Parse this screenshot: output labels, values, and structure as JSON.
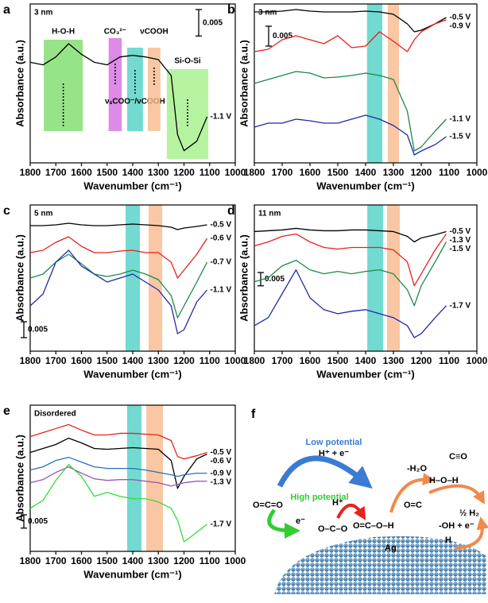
{
  "chart_data": [
    {
      "type": "line",
      "panel_label": "a",
      "title": "3 nm",
      "x_label": "Wavenumber (cm⁻¹)",
      "y_label": "Absorbance (a.u.)",
      "x": [
        1800,
        1750,
        1700,
        1650,
        1600,
        1550,
        1500,
        1450,
        1400,
        1350,
        1300,
        1250,
        1225,
        1200,
        1150,
        1110
      ],
      "xlim": [
        1800,
        1000
      ],
      "xticks": [
        1800,
        1700,
        1600,
        1500,
        1400,
        1300,
        1200,
        1100,
        1000
      ],
      "ylim": [
        0,
        0.03
      ],
      "scale_bar": 0.005,
      "bands": [
        {
          "x": [
            1747,
            1595
          ],
          "color": "#7ddc6a",
          "label": "H-O-H"
        },
        {
          "x": [
            1494,
            1443
          ],
          "color": "#d46ee0",
          "label": "CO₃²⁻"
        },
        {
          "x": [
            1422,
            1360
          ],
          "color": "#4fd1c5",
          "label": "νₛCOO⁻/νCOOH"
        },
        {
          "x": [
            1341,
            1292
          ],
          "color": "#f7b98c",
          "label": "νCOOH"
        },
        {
          "x": [
            1267,
            1105
          ],
          "color": "#a4f08a",
          "label": "Si-O-Si"
        }
      ],
      "series": [
        {
          "name": "-1.1 V",
          "color": "#000000",
          "values": [
            0.019,
            0.0185,
            0.02,
            0.0225,
            0.0205,
            0.019,
            0.0185,
            0.02,
            0.0203,
            0.02,
            0.0195,
            0.0165,
            0.0053,
            0.0023,
            0.0041,
            0.0087
          ]
        }
      ]
    },
    {
      "type": "line",
      "panel_label": "b",
      "title": "3 nm",
      "x_label": "Wavenumber (cm⁻¹)",
      "y_label": "Absorbance (a.u.)",
      "x": [
        1800,
        1750,
        1700,
        1650,
        1600,
        1550,
        1500,
        1450,
        1400,
        1350,
        1300,
        1250,
        1225,
        1200,
        1150,
        1110
      ],
      "xlim": [
        1800,
        1000
      ],
      "xticks": [
        1800,
        1700,
        1600,
        1500,
        1400,
        1300,
        1200,
        1100,
        1000
      ],
      "ylim": [
        0,
        0.04
      ],
      "scale_bar": 0.005,
      "bands": [
        {
          "x": [
            1395,
            1340
          ],
          "color": "#4fd1c5"
        },
        {
          "x": [
            1320,
            1280
          ],
          "color": "#f7b98c"
        }
      ],
      "series": [
        {
          "name": "-0.5 V",
          "color": "#000000",
          "values": [
            0.038,
            0.038,
            0.0382,
            0.0386,
            0.0382,
            0.038,
            0.038,
            0.038,
            0.0382,
            0.038,
            0.0374,
            0.035,
            0.033,
            0.0334,
            0.035,
            0.0366
          ]
        },
        {
          "name": "-0.9 V",
          "color": "#e8211c",
          "values": [
            0.028,
            0.0286,
            0.031,
            0.032,
            0.031,
            0.03,
            0.032,
            0.029,
            0.0294,
            0.033,
            0.0306,
            0.028,
            0.031,
            0.033,
            0.035,
            0.036
          ]
        },
        {
          "name": "-1.1 V",
          "color": "#1a8a4a",
          "values": [
            0.02,
            0.021,
            0.022,
            0.023,
            0.0226,
            0.0214,
            0.0216,
            0.022,
            0.0226,
            0.022,
            0.021,
            0.013,
            0.003,
            0.004,
            0.008,
            0.011
          ]
        },
        {
          "name": "-1.5 V",
          "color": "#1f2aa8",
          "values": [
            0.009,
            0.01,
            0.01,
            0.011,
            0.0106,
            0.01,
            0.01,
            0.011,
            0.012,
            0.011,
            0.0094,
            0.007,
            0.002,
            0.003,
            0.0046,
            0.0066
          ]
        }
      ]
    },
    {
      "type": "line",
      "panel_label": "c",
      "title": "5 nm",
      "x_label": "Wavenumber (cm⁻¹)",
      "y_label": "Absorbance (a.u.)",
      "x": [
        1800,
        1750,
        1700,
        1650,
        1600,
        1550,
        1500,
        1450,
        1400,
        1350,
        1300,
        1250,
        1225,
        1200,
        1150,
        1110
      ],
      "xlim": [
        1800,
        1000
      ],
      "xticks": [
        1800,
        1700,
        1600,
        1500,
        1400,
        1300,
        1200,
        1100,
        1000
      ],
      "ylim": [
        0,
        0.046
      ],
      "scale_bar": 0.005,
      "bands": [
        {
          "x": [
            1428,
            1372
          ],
          "color": "#4fd1c5"
        },
        {
          "x": [
            1338,
            1285
          ],
          "color": "#f7b98c"
        }
      ],
      "series": [
        {
          "name": "-0.5 V",
          "color": "#000000",
          "values": [
            0.0395,
            0.0395,
            0.03975,
            0.04025,
            0.03975,
            0.0395,
            0.0395,
            0.03975,
            0.04,
            0.03975,
            0.0395,
            0.039,
            0.03825,
            0.03875,
            0.03925,
            0.03975
          ]
        },
        {
          "name": "-0.6 V",
          "color": "#e8211c",
          "values": [
            0.031,
            0.03175,
            0.03425,
            0.036,
            0.033,
            0.031,
            0.031,
            0.0315,
            0.03175,
            0.031,
            0.031,
            0.028,
            0.023,
            0.0255,
            0.0305,
            0.0355
          ]
        },
        {
          "name": "-0.7 V",
          "color": "#1a8a4a",
          "values": [
            0.023,
            0.02425,
            0.028,
            0.0305,
            0.0275,
            0.02425,
            0.0235,
            0.02425,
            0.0255,
            0.02425,
            0.0225,
            0.0175,
            0.0105,
            0.01425,
            0.02175,
            0.028
          ]
        },
        {
          "name": "-1.1 V",
          "color": "#1f2aa8",
          "values": [
            0.01425,
            0.018,
            0.028,
            0.03175,
            0.02675,
            0.02425,
            0.02175,
            0.023,
            0.02425,
            0.02175,
            0.01925,
            0.01425,
            0.0055,
            0.00675,
            0.0155,
            0.01925
          ]
        }
      ]
    },
    {
      "type": "line",
      "panel_label": "d",
      "title": "11 nm",
      "x_label": "Wavenumber (cm⁻¹)",
      "y_label": "Absorbance (a.u.)",
      "x": [
        1800,
        1750,
        1700,
        1650,
        1600,
        1550,
        1500,
        1450,
        1400,
        1350,
        1300,
        1250,
        1225,
        1200,
        1150,
        1110
      ],
      "xlim": [
        1800,
        1000
      ],
      "xticks": [
        1800,
        1700,
        1600,
        1500,
        1400,
        1300,
        1200,
        1100,
        1000
      ],
      "ylim": [
        0,
        0.055
      ],
      "scale_bar": 0.005,
      "bands": [
        {
          "x": [
            1394,
            1337
          ],
          "color": "#4fd1c5"
        },
        {
          "x": [
            1323,
            1277
          ],
          "color": "#f7b98c"
        }
      ],
      "series": [
        {
          "name": "-0.5 V",
          "color": "#000000",
          "values": [
            0.045,
            0.0453,
            0.0456,
            0.0462,
            0.0456,
            0.0453,
            0.0453,
            0.0456,
            0.0456,
            0.0453,
            0.045,
            0.0432,
            0.0411,
            0.0426,
            0.0438,
            0.045
          ]
        },
        {
          "name": "-1.3 V",
          "color": "#e8211c",
          "values": [
            0.0396,
            0.0411,
            0.0432,
            0.0441,
            0.0411,
            0.039,
            0.0384,
            0.039,
            0.039,
            0.039,
            0.0381,
            0.0336,
            0.0246,
            0.0291,
            0.0381,
            0.0441
          ]
        },
        {
          "name": "-1.5 V",
          "color": "#1a8a4a",
          "values": [
            0.0261,
            0.0276,
            0.0321,
            0.0342,
            0.0306,
            0.0291,
            0.03,
            0.0291,
            0.03,
            0.0306,
            0.0291,
            0.0231,
            0.0171,
            0.0246,
            0.0336,
            0.0411
          ]
        },
        {
          "name": "-1.7 V",
          "color": "#1f2aa8",
          "values": [
            0.0096,
            0.0126,
            0.0216,
            0.0306,
            0.0201,
            0.0156,
            0.0141,
            0.015,
            0.0156,
            0.0141,
            0.0126,
            0.0096,
            0.0051,
            0.0066,
            0.0126,
            0.0171
          ]
        }
      ]
    },
    {
      "type": "line",
      "panel_label": "e",
      "title": "Disordered",
      "x_label": "Wavenumber (cm⁻¹)",
      "y_label": "Absorbance (a.u.)",
      "x": [
        1800,
        1750,
        1700,
        1650,
        1600,
        1550,
        1500,
        1450,
        1400,
        1350,
        1300,
        1250,
        1225,
        1200,
        1150,
        1110
      ],
      "xlim": [
        1800,
        1000
      ],
      "xticks": [
        1800,
        1700,
        1600,
        1500,
        1400,
        1300,
        1200,
        1100,
        1000
      ],
      "ylim": [
        0,
        0.055
      ],
      "scale_bar": 0.005,
      "bands": [
        {
          "x": [
            1422,
            1366
          ],
          "color": "#4fd1c5"
        },
        {
          "x": [
            1347,
            1282
          ],
          "color": "#f7b98c"
        }
      ],
      "series": [
        {
          "name": "-0.5 V",
          "color": "#e8211c",
          "values": [
            0.0432,
            0.0447,
            0.0462,
            0.0477,
            0.0456,
            0.0438,
            0.0438,
            0.0444,
            0.0444,
            0.0441,
            0.0438,
            0.0417,
            0.0357,
            0.0348,
            0.036,
            0.0372
          ]
        },
        {
          "name": "-0.6 V",
          "color": "#000000",
          "values": [
            0.0372,
            0.0387,
            0.0402,
            0.0426,
            0.0408,
            0.0387,
            0.0384,
            0.0387,
            0.039,
            0.0387,
            0.0384,
            0.0342,
            0.0237,
            0.0282,
            0.0348,
            0.0366
          ]
        },
        {
          "name": "-0.9 V",
          "color": "#2a6fc0",
          "values": [
            0.0306,
            0.0318,
            0.0342,
            0.0354,
            0.0336,
            0.0318,
            0.0312,
            0.0312,
            0.0312,
            0.0306,
            0.0297,
            0.0288,
            0.0282,
            0.0288,
            0.0294,
            0.0294
          ]
        },
        {
          "name": "-1.3 V",
          "color": "#9b59b6",
          "values": [
            0.0258,
            0.027,
            0.0297,
            0.0318,
            0.0294,
            0.0273,
            0.0267,
            0.027,
            0.027,
            0.0264,
            0.0258,
            0.0246,
            0.0252,
            0.0258,
            0.0264,
            0.0264
          ]
        },
        {
          "name": "-1.7 V",
          "color": "#33dd33",
          "values": [
            0.0162,
            0.0192,
            0.0267,
            0.0327,
            0.0282,
            0.0207,
            0.0222,
            0.0207,
            0.0198,
            0.0198,
            0.0186,
            0.0162,
            0.0117,
            0.0036,
            0.0072,
            0.0102
          ]
        }
      ]
    }
  ],
  "diagram": {
    "panel_label": "f",
    "labels": {
      "low_potential": "Low potential",
      "proton_electron": "H⁺ + e⁻",
      "co2": "O=C=O",
      "high_potential": "High potential",
      "electron": "e⁻",
      "proton": "H⁺",
      "bidentate": "O–C–O",
      "cooh": "O=C–O–H",
      "ag": "Ag",
      "water_loss": "-H₂O",
      "co": "C≡O",
      "adsorbed_co": "O=C",
      "water": "H–O–H",
      "oh_electron": "-OH + e⁻",
      "surface_h": "H",
      "hydrogen": "½ H₂"
    }
  }
}
